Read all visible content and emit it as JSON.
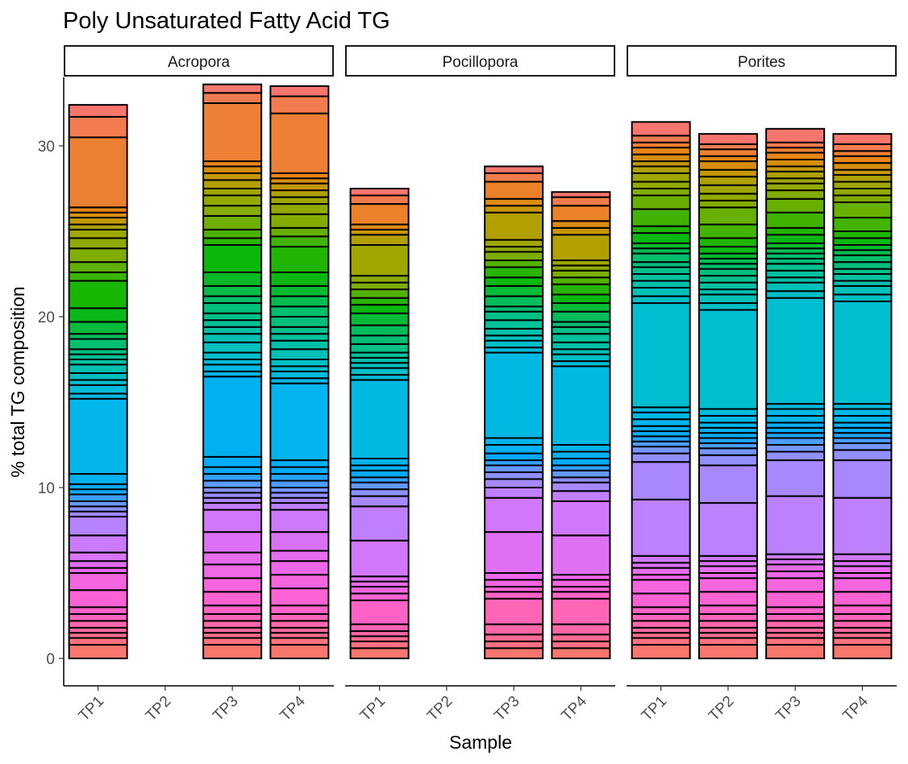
{
  "chart_data": {
    "type": "bar",
    "stacked": true,
    "title": "Poly Unsaturated Fatty Acid TG",
    "xlabel": "Sample",
    "ylabel": "% total TG composition",
    "ylim": [
      0,
      33
    ],
    "y_ticks": [
      0,
      10,
      20,
      30
    ],
    "categories": [
      "TP1",
      "TP2",
      "TP3",
      "TP4"
    ],
    "legend": "none",
    "grid": false,
    "palette_from": "#F8766D",
    "palette_through": [
      "#E68613",
      "#ABA300",
      "#7CAE00",
      "#0CB702",
      "#00BE67",
      "#00C19A",
      "#00BFC4",
      "#00B8E7",
      "#00A9FF",
      "#8494FF",
      "#C77CFF",
      "#ED68ED",
      "#FF61CC",
      "#FF68A1"
    ],
    "facets": [
      {
        "name": "Acropora",
        "bars": [
          {
            "sample": "TP1",
            "total": 32.4,
            "segments": [
              0.8,
              0.4,
              0.3,
              0.3,
              0.4,
              0.4,
              0.4,
              1.0,
              1.0,
              0.3,
              0.4,
              0.5,
              1.0,
              1.1,
              0.3,
              0.3,
              0.3,
              0.4,
              0.3,
              0.3,
              0.6,
              4.4,
              0.3,
              0.5,
              0.3,
              0.4,
              0.5,
              0.3,
              0.3,
              0.3,
              0.6,
              0.3,
              0.7,
              0.8,
              1.6,
              0.5,
              0.6,
              0.8,
              0.6,
              0.5,
              0.3,
              0.4,
              0.3,
              0.3,
              4.1,
              1.2,
              0.7
            ]
          },
          {
            "sample": "TP2",
            "total": 0,
            "segments": []
          },
          {
            "sample": "TP3",
            "total": 32.0,
            "segments": [
              0.8,
              0.4,
              0.3,
              0.3,
              0.4,
              0.4,
              0.5,
              0.8,
              0.8,
              0.8,
              0.7,
              1.2,
              1.3,
              0.4,
              0.3,
              0.3,
              0.3,
              0.4,
              0.4,
              0.4,
              0.6,
              4.7,
              0.3,
              0.4,
              0.3,
              0.4,
              0.6,
              0.5,
              0.4,
              0.4,
              0.4,
              0.6,
              0.4,
              0.6,
              0.8,
              1.6,
              0.4,
              0.5,
              0.8,
              0.6,
              0.6,
              0.4,
              0.5,
              0.4,
              0.4,
              0.3,
              3.4,
              0.6,
              0.5
            ]
          },
          {
            "sample": "TP4",
            "total": 31.5,
            "segments": [
              0.8,
              0.4,
              0.3,
              0.3,
              0.4,
              0.4,
              0.5,
              1.0,
              0.8,
              0.8,
              0.6,
              1.1,
              1.3,
              0.4,
              0.3,
              0.3,
              0.3,
              0.4,
              0.4,
              0.4,
              0.4,
              4.5,
              0.3,
              0.4,
              0.3,
              0.4,
              0.6,
              0.5,
              0.4,
              0.4,
              0.6,
              0.6,
              0.6,
              0.6,
              0.8,
              1.5,
              0.6,
              0.5,
              0.8,
              0.6,
              0.4,
              0.4,
              0.4,
              0.3,
              0.3,
              3.5,
              1.0,
              0.6
            ]
          }
        ]
      },
      {
        "name": "Pocillopora",
        "bars": [
          {
            "sample": "TP1",
            "total": 27.2,
            "segments": [
              0.6,
              0.4,
              0.3,
              0.3,
              0.4,
              1.4,
              0.4,
              0.4,
              0.3,
              0.3,
              2.1,
              2.0,
              0.6,
              0.4,
              0.4,
              0.3,
              0.4,
              0.3,
              0.4,
              4.6,
              0.3,
              0.4,
              0.3,
              0.3,
              0.3,
              0.5,
              0.5,
              0.6,
              0.7,
              0.5,
              0.4,
              0.5,
              0.4,
              0.4,
              1.8,
              0.6,
              0.3,
              0.3,
              1.2,
              0.5,
              0.4
            ]
          },
          {
            "sample": "TP2",
            "total": 0,
            "segments": []
          },
          {
            "sample": "TP3",
            "total": 28.0,
            "segments": [
              0.6,
              0.4,
              0.4,
              0.6,
              1.5,
              0.4,
              0.3,
              0.4,
              0.4,
              2.4,
              2.0,
              0.6,
              0.5,
              0.4,
              0.4,
              0.3,
              0.4,
              0.5,
              0.4,
              5.0,
              0.3,
              0.4,
              0.3,
              0.4,
              0.5,
              0.5,
              0.3,
              0.6,
              0.6,
              0.5,
              0.6,
              0.4,
              0.5,
              0.3,
              0.4,
              1.6,
              0.4,
              0.4,
              1.0,
              0.5,
              0.4
            ]
          },
          {
            "sample": "TP4",
            "total": 27.0,
            "segments": [
              0.6,
              0.4,
              0.4,
              0.6,
              1.5,
              0.4,
              0.3,
              0.4,
              0.3,
              2.3,
              2.0,
              0.6,
              0.5,
              0.3,
              0.4,
              0.3,
              0.4,
              0.4,
              0.4,
              4.6,
              0.3,
              0.4,
              0.3,
              0.4,
              0.5,
              0.4,
              0.3,
              0.6,
              0.5,
              0.5,
              0.6,
              0.4,
              0.4,
              0.3,
              0.3,
              1.5,
              0.4,
              0.4,
              0.9,
              0.5,
              0.3
            ]
          }
        ]
      },
      {
        "name": "Porites",
        "bars": [
          {
            "sample": "TP1",
            "total": 28.2,
            "segments": [
              0.8,
              0.4,
              0.3,
              0.3,
              0.4,
              0.4,
              0.4,
              0.8,
              0.8,
              0.3,
              0.4,
              0.3,
              0.4,
              3.3,
              2.2,
              0.5,
              0.4,
              0.3,
              0.3,
              0.3,
              0.3,
              0.4,
              0.4,
              0.3,
              6.1,
              0.4,
              0.5,
              0.4,
              0.4,
              0.4,
              0.3,
              0.5,
              0.3,
              0.3,
              0.6,
              0.4,
              1.0,
              0.8,
              0.4,
              0.4,
              0.5,
              0.4,
              0.3,
              0.4,
              0.4,
              0.3,
              0.4,
              0.8
            ]
          },
          {
            "sample": "TP2",
            "total": 28.1,
            "segments": [
              0.8,
              0.4,
              0.3,
              0.3,
              0.4,
              0.4,
              0.5,
              0.8,
              0.8,
              0.3,
              0.4,
              0.3,
              0.3,
              3.1,
              2.2,
              0.6,
              0.4,
              0.3,
              0.3,
              0.3,
              0.3,
              0.3,
              0.4,
              0.4,
              5.8,
              0.4,
              0.5,
              0.3,
              0.4,
              0.4,
              0.4,
              0.3,
              0.3,
              0.3,
              0.4,
              0.5,
              0.8,
              1.0,
              0.4,
              0.4,
              0.5,
              0.5,
              0.4,
              0.5,
              0.3,
              0.4,
              0.3,
              0.6
            ]
          },
          {
            "sample": "TP3",
            "total": 28.1,
            "segments": [
              0.8,
              0.4,
              0.3,
              0.3,
              0.4,
              0.4,
              0.4,
              0.9,
              0.8,
              0.4,
              0.4,
              0.3,
              0.3,
              3.4,
              2.1,
              0.5,
              0.4,
              0.4,
              0.3,
              0.3,
              0.3,
              0.4,
              0.4,
              0.3,
              6.2,
              0.4,
              0.5,
              0.3,
              0.4,
              0.4,
              0.3,
              0.3,
              0.3,
              0.3,
              0.5,
              0.4,
              0.9,
              0.8,
              0.5,
              0.4,
              0.3,
              0.4,
              0.3,
              0.4,
              0.4,
              0.3,
              0.3,
              0.8
            ]
          },
          {
            "sample": "TP4",
            "total": 28.2,
            "segments": [
              0.8,
              0.4,
              0.3,
              0.3,
              0.4,
              0.4,
              0.5,
              0.8,
              0.8,
              0.3,
              0.4,
              0.3,
              0.4,
              3.3,
              2.2,
              0.6,
              0.4,
              0.3,
              0.3,
              0.3,
              0.3,
              0.4,
              0.4,
              0.3,
              6.0,
              0.4,
              0.5,
              0.3,
              0.4,
              0.3,
              0.4,
              0.4,
              0.3,
              0.3,
              0.4,
              0.4,
              0.8,
              0.9,
              0.4,
              0.4,
              0.4,
              0.4,
              0.3,
              0.4,
              0.4,
              0.3,
              0.4,
              0.6
            ]
          }
        ]
      }
    ]
  }
}
